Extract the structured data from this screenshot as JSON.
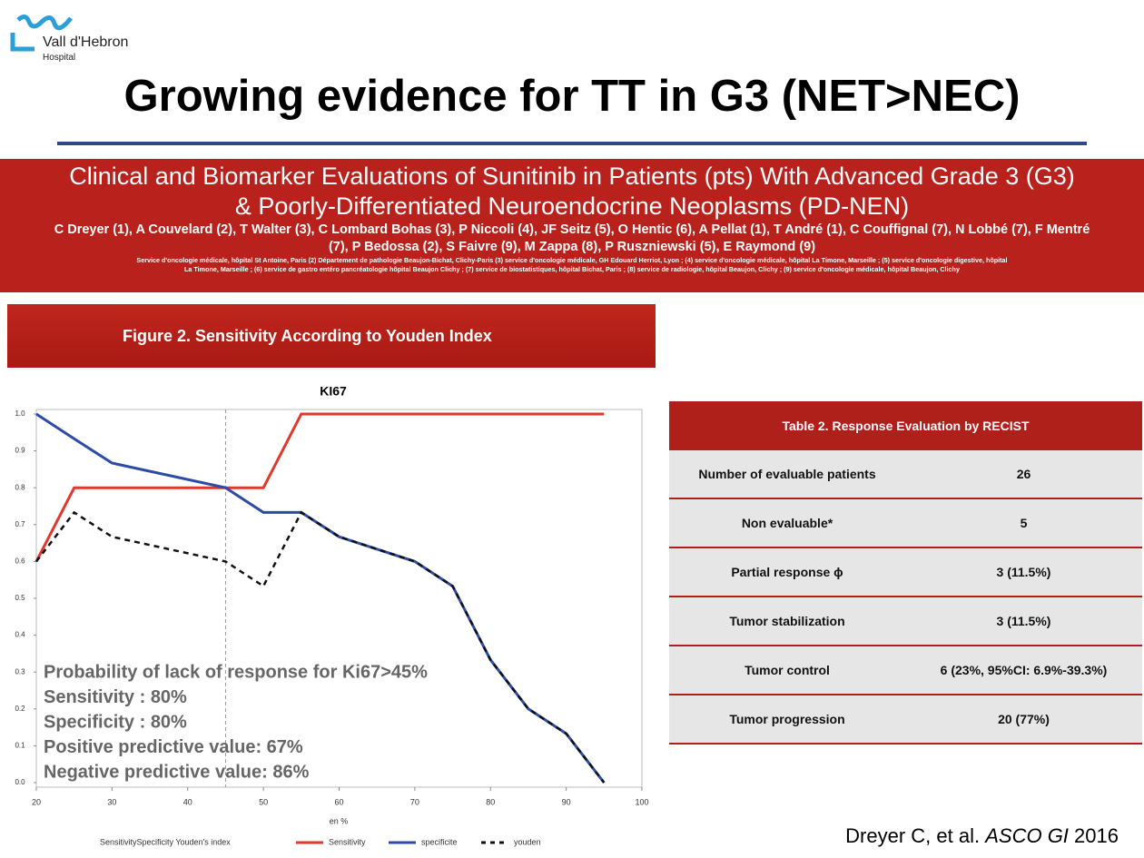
{
  "logo": {
    "name": "Vall d'Hebron",
    "sub": "Hospital"
  },
  "header": {
    "title": "Growing evidence for TT in G3 (NET>NEC)"
  },
  "banner": {
    "title_lines": [
      "Clinical and Biomarker Evaluations of Sunitinib in Patients (pts) With Advanced Grade 3 (G3)",
      "& Poorly-Differentiated Neuroendocrine Neoplasms (PD-NEN)"
    ],
    "authors": [
      "C Dreyer (1), A Couvelard (2), T Walter (3), C Lombard Bohas (3), P Niccoli (4), JF Seitz (5), O Hentic (6), A Pellat (1), T André (1), C Couffignal (7), N Lobbé (7), F Mentré",
      "(7), P Bedossa (2), S Faivre (9), M Zappa (8), P Ruszniewski (5), E Raymond (9)"
    ],
    "affiliations": [
      "Service d'oncologie médicale, hôpital St Antoine, Paris (2) Département de pathologie Beaujon-Bichat, Clichy-Paris (3) service d'oncologie médicale, GH Edouard Herriot, Lyon ; (4) service d'oncologie médicale, hôpital La Timone, Marseille ; (5) service d'oncologie digestive, hôpital",
      "La Timone, Marseille ; (6) service de gastro entéro pancréatologie hôpital Beaujon Clichy ; (7) service de biostatistiques, hôpital Bichat, Paris ; (8) service de radiologie, hôpital Beaujon, Clichy ; (9) service d'oncologie médicale, hôpital Beaujon, Clichy"
    ]
  },
  "figure": {
    "caption": "Figure 2. Sensitivity According to Youden Index"
  },
  "chart_data": {
    "type": "line",
    "title": "KI67",
    "x_label": "en %",
    "legend_title": "SensitivitySpecificity Youden's index",
    "x": [
      20,
      25,
      30,
      45,
      50,
      55,
      60,
      70,
      75,
      80,
      85,
      90,
      95
    ],
    "series": [
      {
        "name": "Sensitivity",
        "color": "#e0382a",
        "dash": false,
        "values": [
          0.6,
          0.8,
          0.8,
          0.8,
          0.8,
          1.0,
          1.0,
          1.0,
          1.0,
          1.0,
          1.0,
          1.0,
          1.0
        ]
      },
      {
        "name": "specificite",
        "color": "#2c4aa6",
        "dash": false,
        "values": [
          1.0,
          0.933,
          0.867,
          0.8,
          0.733,
          0.733,
          0.667,
          0.6,
          0.533,
          0.333,
          0.2,
          0.133,
          0.0
        ]
      },
      {
        "name": "youden",
        "color": "#111111",
        "dash": true,
        "values": [
          0.6,
          0.733,
          0.667,
          0.6,
          0.533,
          0.733,
          0.667,
          0.6,
          0.533,
          0.333,
          0.2,
          0.133,
          0.0
        ]
      }
    ],
    "xlim": [
      20,
      100
    ],
    "ylim": [
      0,
      1
    ],
    "xticks": [
      20,
      30,
      40,
      50,
      60,
      70,
      80,
      90,
      100
    ],
    "yticks": [
      {
        "value": 0,
        "label": "0.0"
      },
      0.1,
      0.2,
      0.3,
      0.4,
      0.5,
      0.6,
      0.7,
      0.8,
      0.9,
      {
        "value": 1,
        "label": "1.0"
      }
    ],
    "vline": 45,
    "annotations": [
      "Probability of lack of response for Ki67>45%",
      "Sensitivity : 80%",
      "Specificity : 80%",
      "Positive predictive value: 67%",
      "Negative predictive value: 86%"
    ]
  },
  "table": {
    "title": "Table 2. Response Evaluation by RECIST",
    "rows": [
      [
        "Number of evaluable patients",
        "26"
      ],
      [
        "Non evaluable*",
        "5"
      ],
      [
        "Partial response ϕ",
        "3 (11.5%)"
      ],
      [
        "Tumor stabilization",
        "3 (11.5%)"
      ],
      [
        "Tumor control",
        "6 (23%, 95%CI: 6.9%-39.3%)"
      ],
      [
        "Tumor progression",
        "20 (77%)"
      ]
    ]
  },
  "citation": {
    "authors": "Dreyer C, et al.",
    "journal": "ASCO GI",
    "year": "2016"
  }
}
